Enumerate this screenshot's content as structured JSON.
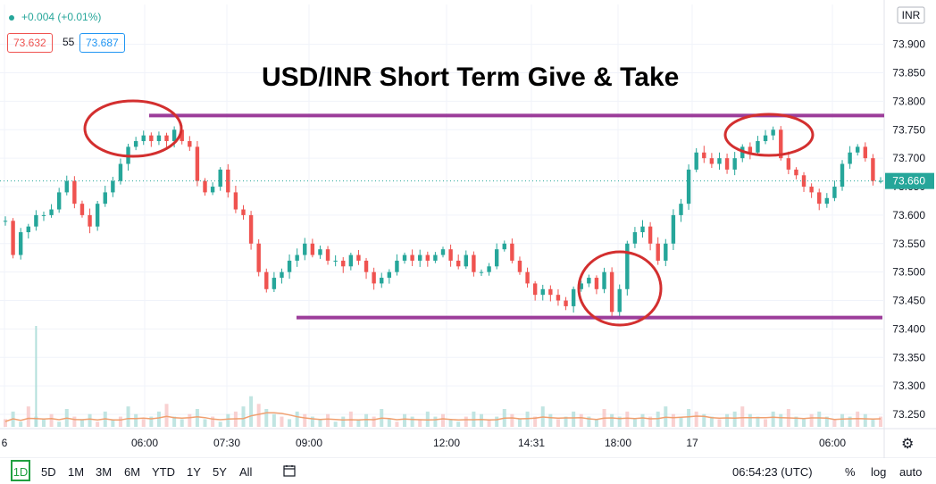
{
  "header": {
    "change_text": "+0.004 (+0.01%)",
    "bid": "73.632",
    "spread": "55",
    "ask": "73.687",
    "currency": "INR"
  },
  "title": "USD/INR Short Term Give & Take",
  "colors": {
    "up": "#26a69a",
    "down": "#ef5350",
    "annotation_line": "#9c3d9a",
    "annotation_circle": "#d32f2f",
    "last_price_bg": "#26a69a",
    "volume_ma": "#f0a070"
  },
  "chart_data": {
    "type": "line",
    "y_axis_ticks": [
      "73.900",
      "73.850",
      "73.800",
      "73.750",
      "73.700",
      "73.650",
      "73.600",
      "73.550",
      "73.500",
      "73.450",
      "73.400",
      "73.350",
      "73.300",
      "73.250"
    ],
    "ylim": [
      73.225,
      73.97
    ],
    "x_tick_labels": [
      "6",
      "06:00",
      "07:30",
      "09:00",
      "12:00",
      "14:31",
      "18:00",
      "17",
      "06:00"
    ],
    "last_price": "73.660",
    "series": [
      {
        "values": [
          73.59,
          73.53,
          73.57,
          73.58,
          73.6,
          73.6,
          73.61,
          73.64,
          73.66,
          73.62,
          73.6,
          73.58,
          73.62,
          73.64,
          73.66,
          73.69,
          73.72,
          73.73,
          73.74,
          73.73,
          73.74,
          73.73,
          73.75,
          73.73,
          73.72,
          73.66,
          73.64,
          73.65,
          73.68,
          73.64,
          73.61,
          73.6,
          73.55,
          73.5,
          73.47,
          73.49,
          73.5,
          73.52,
          73.53,
          73.55,
          73.53,
          73.54,
          73.52,
          73.52,
          73.51,
          73.53,
          73.52,
          73.5,
          73.48,
          73.49,
          73.5,
          73.52,
          73.53,
          73.52,
          73.53,
          73.52,
          73.53,
          73.54,
          73.52,
          73.51,
          73.53,
          73.5,
          73.5,
          73.51,
          73.54,
          73.55,
          73.52,
          73.5,
          73.48,
          73.46,
          73.47,
          73.46,
          73.45,
          73.44,
          73.47,
          73.48,
          73.49,
          73.47,
          73.5,
          73.43,
          73.47,
          73.55,
          73.57,
          73.58,
          73.55,
          73.52,
          73.55,
          73.6,
          73.62,
          73.68,
          73.71,
          73.7,
          73.69,
          73.7,
          73.68,
          73.7,
          73.72,
          73.71,
          73.73,
          73.74,
          73.75,
          73.7,
          73.68,
          73.67,
          73.65,
          73.64,
          73.62,
          73.63,
          73.65,
          73.69,
          73.71,
          73.72,
          73.7,
          73.66,
          73.66
        ]
      }
    ],
    "annotations": {
      "resistance_level": 73.775,
      "support_level": 73.42
    },
    "volume_values": [
      3,
      6,
      2,
      8,
      4,
      3,
      5,
      2,
      7,
      4,
      3,
      5,
      2,
      6,
      3,
      4,
      8,
      5,
      3,
      4,
      6,
      9,
      4,
      3,
      5,
      7,
      3,
      4,
      2,
      5,
      6,
      8,
      12,
      9,
      7,
      5,
      4,
      3,
      6,
      5,
      4,
      3,
      5,
      2,
      4,
      6,
      3,
      5,
      4,
      7,
      3,
      2,
      5,
      4,
      3,
      6,
      4,
      5,
      3,
      2,
      4,
      6,
      5,
      3,
      4,
      7,
      5,
      3,
      6,
      4,
      8,
      5,
      3,
      4,
      6,
      5,
      4,
      3,
      7,
      5,
      4,
      6,
      3,
      5,
      4,
      6,
      8,
      5,
      4,
      7,
      6,
      5,
      4,
      3,
      5,
      6,
      8,
      5,
      4,
      3,
      6,
      5,
      7,
      4,
      3,
      5,
      6,
      4,
      3,
      5,
      4,
      6,
      5,
      3,
      4
    ],
    "volume_outlier_index": 4
  },
  "bottom_bar": {
    "timeframes": [
      "1D",
      "5D",
      "1M",
      "3M",
      "6M",
      "YTD",
      "1Y",
      "5Y",
      "All"
    ],
    "time": "06:54:23 (UTC)",
    "percent": "%",
    "log": "log",
    "auto": "auto"
  }
}
